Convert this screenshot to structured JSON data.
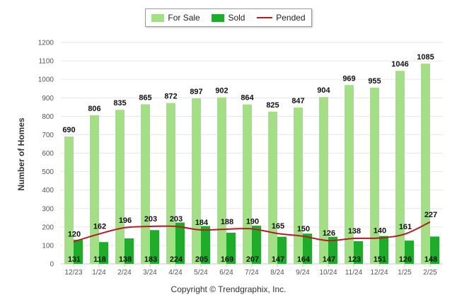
{
  "legend": {
    "items": [
      {
        "label": "For Sale",
        "color": "#a3df85"
      },
      {
        "label": "Sold",
        "color": "#1eac2a"
      },
      {
        "label": "Pended",
        "color": "#b51d22"
      }
    ]
  },
  "copyright": "Copyright © Trendgraphix, Inc.",
  "chart_data": {
    "type": "bar",
    "ylabel": "Number of Homes",
    "xlabel": "",
    "ylim": [
      0,
      1200
    ],
    "yticks": [
      0,
      100,
      200,
      300,
      400,
      500,
      600,
      700,
      800,
      900,
      1000,
      1100,
      1200
    ],
    "grid": true,
    "legend_position": "top-center",
    "categories": [
      "12/23",
      "1/24",
      "2/24",
      "3/24",
      "4/24",
      "5/24",
      "6/24",
      "7/24",
      "8/24",
      "9/24",
      "10/24",
      "11/24",
      "12/24",
      "1/25",
      "2/25"
    ],
    "series": [
      {
        "name": "For Sale",
        "kind": "bar",
        "color": "#a3df85",
        "values": [
          690,
          806,
          835,
          865,
          872,
          897,
          902,
          864,
          825,
          847,
          904,
          969,
          955,
          1046,
          1085
        ]
      },
      {
        "name": "Sold",
        "kind": "bar",
        "color": "#1eac2a",
        "values": [
          131,
          118,
          138,
          183,
          224,
          205,
          169,
          207,
          147,
          164,
          147,
          123,
          151,
          126,
          148
        ]
      },
      {
        "name": "Pended",
        "kind": "line",
        "color": "#b51d22",
        "values": [
          120,
          162,
          196,
          203,
          203,
          184,
          188,
          190,
          165,
          150,
          126,
          138,
          140,
          161,
          227
        ]
      }
    ]
  }
}
